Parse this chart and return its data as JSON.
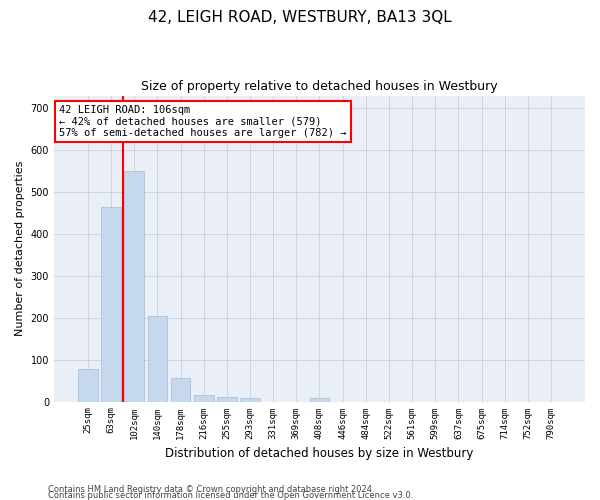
{
  "title": "42, LEIGH ROAD, WESTBURY, BA13 3QL",
  "subtitle": "Size of property relative to detached houses in Westbury",
  "xlabel": "Distribution of detached houses by size in Westbury",
  "ylabel": "Number of detached properties",
  "categories": [
    "25sqm",
    "63sqm",
    "102sqm",
    "140sqm",
    "178sqm",
    "216sqm",
    "255sqm",
    "293sqm",
    "331sqm",
    "369sqm",
    "408sqm",
    "446sqm",
    "484sqm",
    "522sqm",
    "561sqm",
    "599sqm",
    "637sqm",
    "675sqm",
    "714sqm",
    "752sqm",
    "790sqm"
  ],
  "values": [
    78,
    465,
    550,
    205,
    57,
    15,
    10,
    9,
    0,
    0,
    8,
    0,
    0,
    0,
    0,
    0,
    0,
    0,
    0,
    0,
    0
  ],
  "bar_color": "#c5d8ed",
  "bar_edgecolor": "#a0bcd8",
  "vline_x_index": 2,
  "annotation_line1": "42 LEIGH ROAD: 106sqm",
  "annotation_line2": "← 42% of detached houses are smaller (579)",
  "annotation_line3": "57% of semi-detached houses are larger (782) →",
  "annotation_box_facecolor": "white",
  "annotation_box_edgecolor": "red",
  "vline_color": "red",
  "ylim": [
    0,
    730
  ],
  "yticks": [
    0,
    100,
    200,
    300,
    400,
    500,
    600,
    700
  ],
  "grid_color": "#ccd5e0",
  "bg_color": "#eaeff7",
  "footer_line1": "Contains HM Land Registry data © Crown copyright and database right 2024.",
  "footer_line2": "Contains public sector information licensed under the Open Government Licence v3.0.",
  "title_fontsize": 11,
  "subtitle_fontsize": 9,
  "tick_fontsize": 6.5,
  "ylabel_fontsize": 8,
  "xlabel_fontsize": 8.5,
  "annotation_fontsize": 7.5
}
